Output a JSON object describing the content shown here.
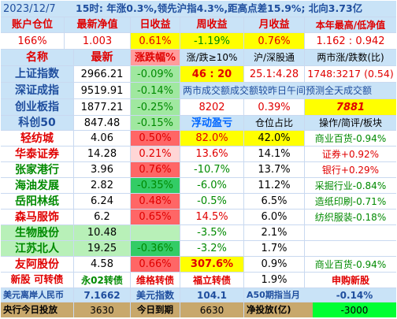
{
  "header": {
    "date": "2023/12/7",
    "summary": "15时: 年涨0.3%,领先沪指4.3%,距高点差15.9%; 北向3.73亿"
  },
  "account": {
    "headers": [
      "账户仓位",
      "最新净值",
      "日收益",
      "周收益",
      "月收益",
      "本年最高/低净值"
    ],
    "values": [
      "166%",
      "1.003",
      "0.61%",
      "-1.19%",
      "0.76%",
      "1.162 : 0.942"
    ]
  },
  "index_headers": [
    "名称",
    "最新",
    "涨跌幅%",
    "涨/跌≥10%",
    "沪/深股通",
    "两市涨/跌数(比)"
  ],
  "indices": [
    {
      "name": "上证指数",
      "price": "2966.21",
      "change": "-0.09%",
      "c4": "46 : 20",
      "c5": "25.1:4.28",
      "c6": "1748:3217 (0.54)"
    },
    {
      "name": "深证成指",
      "price": "9519.91",
      "change": "-0.14%",
      "note": "两市成交额成交额较昨日午间预测全天成交额"
    },
    {
      "name": "创业板指",
      "price": "1877.21",
      "change": "-0.25%",
      "c4": "8202",
      "c5": "0.39%",
      "c6": "7881"
    },
    {
      "name": "科创50",
      "price": "847.48",
      "change": "-0.15%"
    }
  ],
  "holding_headers": [
    "浮动盈亏",
    "仓位占比",
    "操作/简评/板块"
  ],
  "holdings": [
    {
      "name": "轻纺城",
      "price": "4.06",
      "change": "0.50%",
      "pnl": "82.0%",
      "pos": "42.0%",
      "note": "商业百货-0.94%"
    },
    {
      "name": "华泰证券",
      "price": "14.28",
      "change": "0.21%",
      "pnl": "13.6%",
      "pos": "14.1%",
      "note": "证券+0.92%"
    },
    {
      "name": "张家港行",
      "price": "3.96",
      "change": "0.76%",
      "pnl": "-10.7%",
      "pos": "13.7%",
      "note": "银行+0.29%"
    },
    {
      "name": "海油发展",
      "price": "2.82",
      "change": "-0.35%",
      "pnl": "-6.0%",
      "pos": "11.2%",
      "note": "采掘行业-0.84%"
    },
    {
      "name": "岳阳林纸",
      "price": "6.24",
      "change": "0.48%",
      "pnl": "-0.5%",
      "pos": "6.5%",
      "note": "造纸印刷-0.71%"
    },
    {
      "name": "森马服饰",
      "price": "6.2",
      "change": "0.65%",
      "pnl": "14.5%",
      "pos": "6.0%",
      "note": "纺织服装-0.18%"
    },
    {
      "name": "生物股份",
      "price": "10.48",
      "change": "",
      "pnl": "-3.5%",
      "pos": "2.1%",
      "note": ""
    },
    {
      "name": "江苏北人",
      "price": "19.25",
      "change": "-0.36%",
      "pnl": "-3.2%",
      "pos": "1.7%",
      "note": ""
    },
    {
      "name": "友阿股份",
      "price": "4.58",
      "change": "0.66%",
      "pnl": "307.6%",
      "pos": "0.9%",
      "note": "商业百货-0.94%"
    }
  ],
  "bonds": {
    "label": "新股 可转债",
    "b1": "永02转债",
    "b2": "维格转债",
    "b3": "福立转债",
    "pos": "1.9%",
    "note": "申购新股"
  },
  "footer1": {
    "l1": "美元离岸人民币",
    "v1": "7.1662",
    "l2": "美元指数",
    "v2": "104.1",
    "l3": "A50期指当月",
    "v3": "-0.14%"
  },
  "footer2": {
    "l1": "央行今日投放",
    "v1": "3630",
    "l2": "今日到期",
    "v2": "6630",
    "l3": "净投放(亿)",
    "v3": "-3000"
  },
  "colors": {
    "light_blue": "#c9e3f7",
    "yellow": "#ffff00",
    "green": "#00ff33",
    "light_green": "#b8f0b8",
    "red": "#ff6666",
    "pink": "#ff9c9c",
    "light_pink": "#ffd6d6",
    "mid_green": "#a0e8a0",
    "strong_green": "#33cc66",
    "dark_blue": "#1f4e9e",
    "brown": "#c8a86c"
  }
}
